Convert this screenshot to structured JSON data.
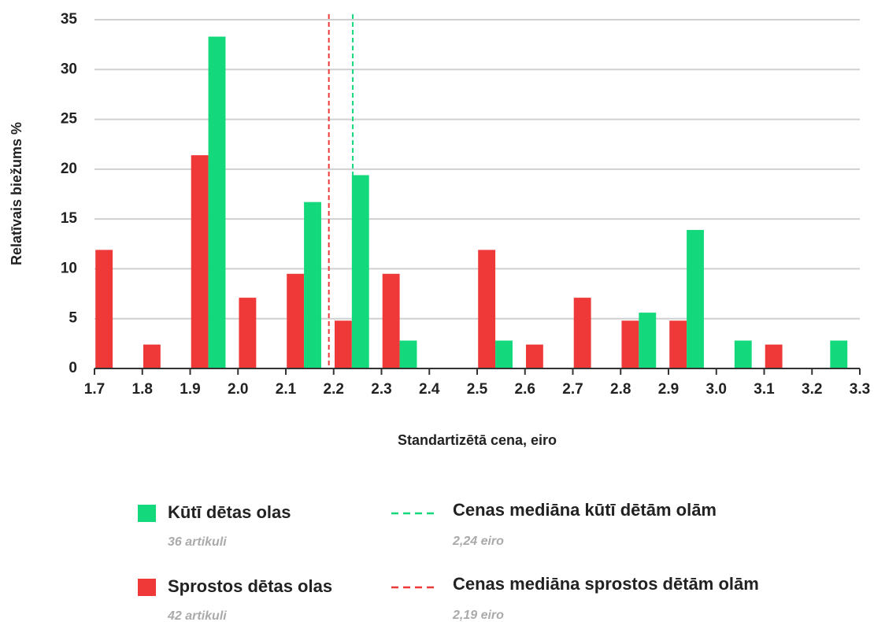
{
  "chart_data": {
    "type": "bar",
    "x_title": "Standartizētā cena, eiro",
    "y_title": "Relatīvais biežums %",
    "x": [
      1.7,
      1.8,
      1.9,
      2,
      2.1,
      2.2,
      2.3,
      2.4,
      2.5,
      2.6,
      2.7,
      2.8,
      2.9,
      3,
      3.1,
      3.2
    ],
    "series": [
      {
        "name": "Sprostos dētas olas",
        "note": "42 artikuli",
        "color": "#ef3838",
        "values": [
          11.9,
          2.4,
          21.4,
          7.1,
          9.5,
          4.8,
          9.5,
          0,
          11.9,
          2.4,
          7.1,
          4.8,
          4.8,
          0,
          2.4,
          0
        ]
      },
      {
        "name": "Kūtī dētas olas",
        "note": "36 artikuli",
        "color": "#13d97c",
        "values": [
          0,
          0,
          33.3,
          0,
          16.7,
          19.4,
          2.8,
          0,
          2.8,
          0,
          0,
          5.6,
          13.9,
          2.8,
          0,
          2.8
        ]
      }
    ],
    "median_lines": [
      {
        "name": "Cenas mediāna kūtī dētām olām",
        "value": 2.24,
        "label": "2,24 eiro",
        "color": "#13d97c"
      },
      {
        "name": "Cenas mediāna sprostos dētām olām",
        "value": 2.19,
        "label": "2,19 eiro",
        "color": "#ef3838"
      }
    ],
    "xlim": [
      1.7,
      3.3
    ],
    "xticks": [
      1.7,
      1.8,
      1.9,
      {
        "value": 2,
        "label": "2.0"
      },
      2.1,
      2.2,
      2.3,
      2.4,
      2.5,
      2.6,
      2.7,
      2.8,
      2.9,
      {
        "value": 3,
        "label": "3.0"
      },
      3.1,
      3.2,
      3.3
    ],
    "ylim": [
      0,
      35
    ],
    "yticks": [
      0,
      5,
      10,
      15,
      20,
      25,
      30,
      35
    ],
    "grid": true
  }
}
